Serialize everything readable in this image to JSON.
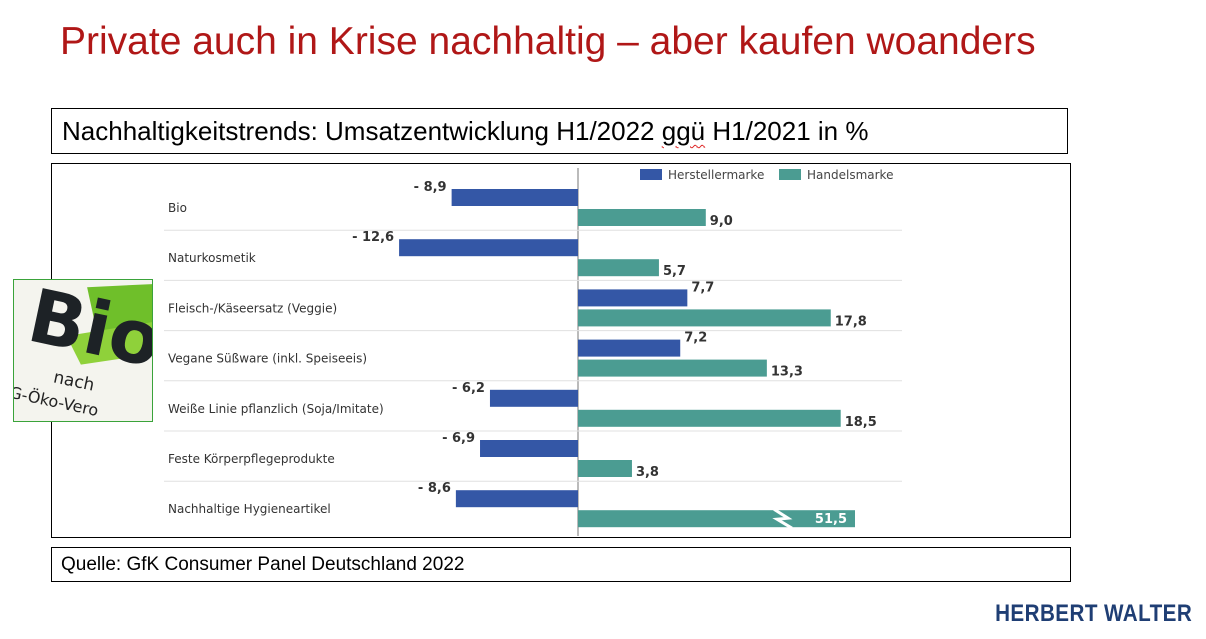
{
  "title": "Private auch in Krise nachhaltig – aber kaufen woanders",
  "subtitle_before": "Nachhaltigkeitstrends: Umsatzentwicklung H1/2022 ",
  "subtitle_flagged": "ggü",
  "subtitle_after": " H1/2021 in %",
  "source": "Quelle: GfK Consumer Panel Deutschland 2022",
  "brand": "HERBERT WALTER",
  "logo": {
    "text_main": "Bio",
    "text_small_1": "nach",
    "text_small_2": "EG-Öko-Vero"
  },
  "chart_data": {
    "type": "bar",
    "orientation": "horizontal",
    "categories": [
      "Bio",
      "Naturkosmetik",
      "Fleisch-/Käseersatz (Veggie)",
      "Vegane Süßware (inkl. Speiseeis)",
      "Weiße Linie pflanzlich (Soja/Imitate)",
      "Feste Körperpflegeprodukte",
      "Nachhaltige Hygieneartikel"
    ],
    "series": [
      {
        "name": "Herstellermarke",
        "color": "#3457a6",
        "values": [
          -8.9,
          -12.6,
          7.7,
          7.2,
          -6.2,
          -6.9,
          -8.6
        ],
        "labels": [
          "- 8,9",
          "- 12,6",
          "7,7",
          "7,2",
          "- 6,2",
          "- 6,9",
          "- 8,6"
        ]
      },
      {
        "name": "Handelsmarke",
        "color": "#4b9c92",
        "values": [
          9.0,
          5.7,
          17.8,
          13.3,
          18.5,
          3.8,
          51.5
        ],
        "labels": [
          "9,0",
          "5,7",
          "17,8",
          "13,3",
          "18,5",
          "3,8",
          "51,5"
        ]
      }
    ],
    "axis_break": {
      "category_index": 6,
      "series_index": 1
    },
    "legend_position": "top-right",
    "grid": false
  }
}
